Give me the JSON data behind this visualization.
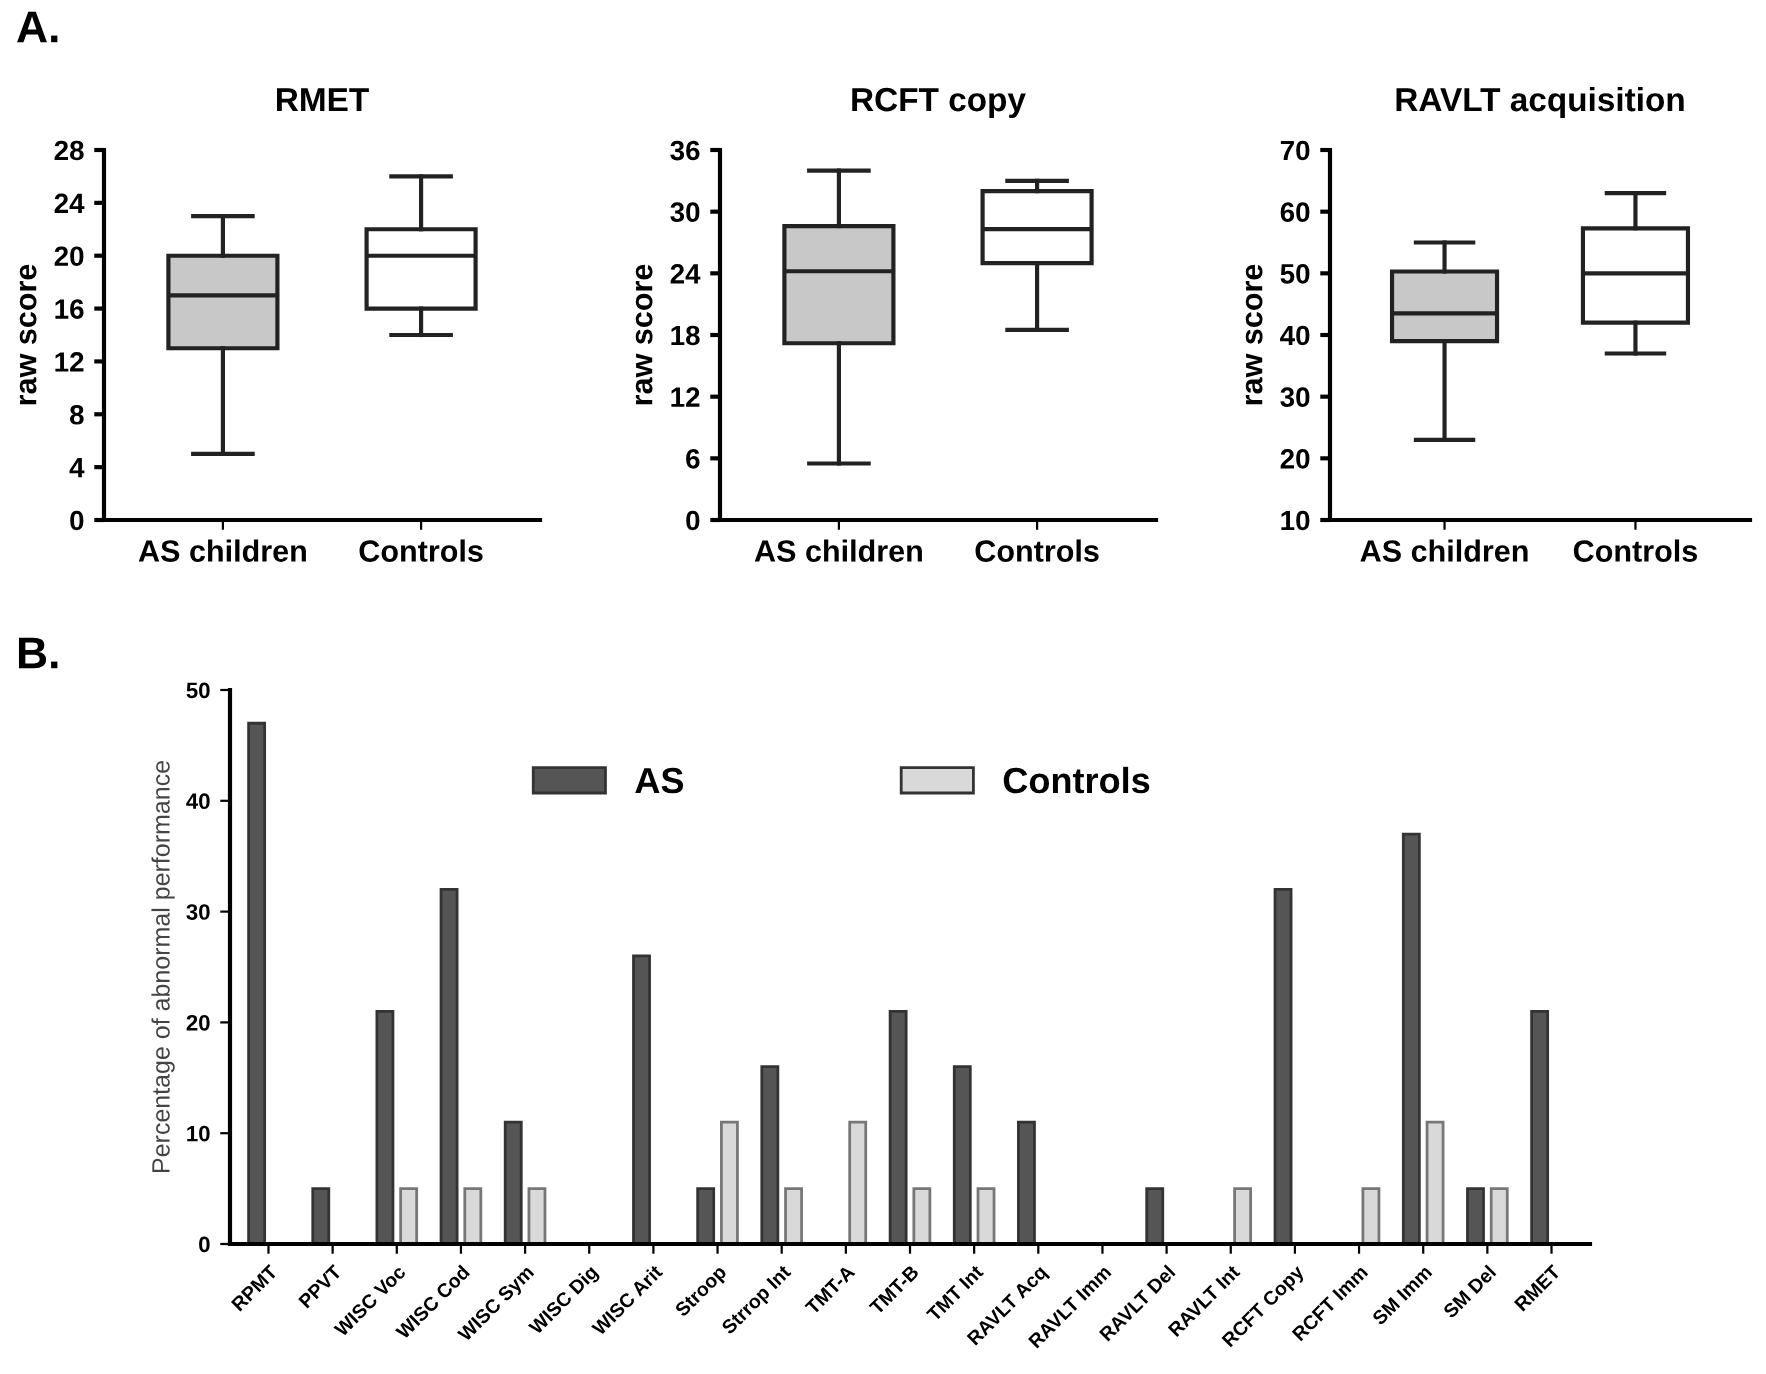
{
  "chart_data": [
    {
      "type": "box",
      "title": "RMET",
      "ylabel": "raw score",
      "annotations": [
        "A."
      ],
      "categories": [
        "AS children",
        "Controls"
      ],
      "colors": [
        "#c8c8c8",
        "#ffffff"
      ],
      "boxes": [
        {
          "low": 5,
          "q1": 13,
          "median": 17,
          "q3": 20,
          "high": 23
        },
        {
          "low": 14,
          "q1": 16,
          "median": 20,
          "q3": 22,
          "high": 26
        }
      ],
      "ylim": [
        0,
        28
      ],
      "yticks": [
        0,
        4,
        8,
        12,
        16,
        20,
        24,
        28
      ],
      "grid": false
    },
    {
      "type": "box",
      "title": "RCFT copy",
      "ylabel": "raw score",
      "categories": [
        "AS children",
        "Controls"
      ],
      "colors": [
        "#c8c8c8",
        "#ffffff"
      ],
      "boxes": [
        {
          "low": 5.5,
          "q1": 17.2,
          "median": 24.2,
          "q3": 28.6,
          "high": 34
        },
        {
          "low": 18.5,
          "q1": 25,
          "median": 28.3,
          "q3": 32,
          "high": 33
        }
      ],
      "ylim": [
        0,
        36
      ],
      "yticks": [
        0,
        6,
        12,
        18,
        24,
        30,
        36
      ],
      "grid": false
    },
    {
      "type": "box",
      "title": "RAVLT acquisition",
      "ylabel": "raw score",
      "categories": [
        "AS children",
        "Controls"
      ],
      "colors": [
        "#c8c8c8",
        "#ffffff"
      ],
      "boxes": [
        {
          "low": 23,
          "q1": 39,
          "median": 43.5,
          "q3": 50.3,
          "high": 55
        },
        {
          "low": 37,
          "q1": 42,
          "median": 50,
          "q3": 57.3,
          "high": 63
        }
      ],
      "ylim": [
        10,
        70
      ],
      "yticks": [
        10,
        20,
        30,
        40,
        50,
        60,
        70
      ],
      "grid": false
    },
    {
      "type": "bar",
      "ylabel": "Percentage of abnormal performance",
      "annotations": [
        "B."
      ],
      "categories": [
        "RPMT",
        "PPVT",
        "WISC Voc",
        "WISC Cod",
        "WISC Sym",
        "WISC Dig",
        "WISC Arit",
        "Stroop",
        "Strrop Int",
        "TMT-A",
        "TMT-B",
        "TMT Int",
        "RAVLT Acq",
        "RAVLT Imm",
        "RAVLT Del",
        "RAVLT Int",
        "RCFT Copy",
        "RCFT Imm",
        "SM Imm",
        "SM Del",
        "RMET"
      ],
      "series": [
        {
          "name": "AS",
          "color": "#555555",
          "values": [
            47,
            5,
            21,
            32,
            11,
            0,
            26,
            5,
            16,
            0,
            21,
            16,
            11,
            0,
            5,
            0,
            32,
            0,
            37,
            5,
            21
          ]
        },
        {
          "name": "Controls",
          "color": "#d9d9d9",
          "values": [
            0,
            0,
            5,
            5,
            5,
            0,
            0,
            11,
            5,
            11,
            5,
            5,
            0,
            0,
            0,
            5,
            0,
            5,
            11,
            5,
            0
          ]
        }
      ],
      "ylim": [
        0,
        50
      ],
      "yticks": [
        0,
        10,
        20,
        30,
        40,
        50
      ],
      "grid": false,
      "legend": "top"
    }
  ]
}
